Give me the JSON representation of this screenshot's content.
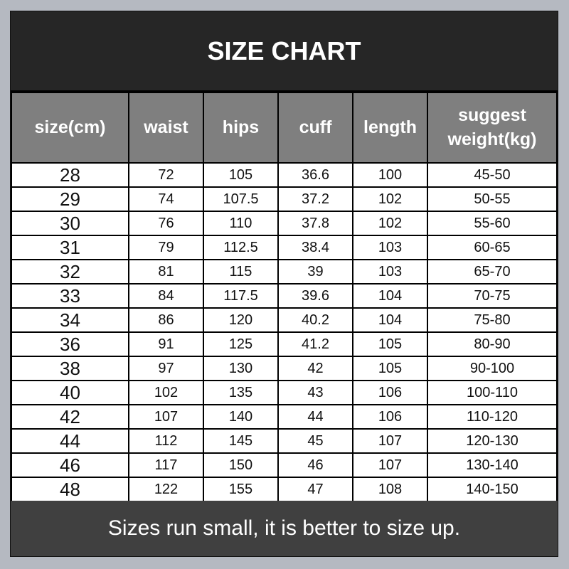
{
  "title": "SIZE CHART",
  "headers": [
    "size(cm)",
    "waist",
    "hips",
    "cuff",
    "length",
    "suggest weight(kg)"
  ],
  "rows": [
    [
      "28",
      "72",
      "105",
      "36.6",
      "100",
      "45-50"
    ],
    [
      "29",
      "74",
      "107.5",
      "37.2",
      "102",
      "50-55"
    ],
    [
      "30",
      "76",
      "110",
      "37.8",
      "102",
      "55-60"
    ],
    [
      "31",
      "79",
      "112.5",
      "38.4",
      "103",
      "60-65"
    ],
    [
      "32",
      "81",
      "115",
      "39",
      "103",
      "65-70"
    ],
    [
      "33",
      "84",
      "117.5",
      "39.6",
      "104",
      "70-75"
    ],
    [
      "34",
      "86",
      "120",
      "40.2",
      "104",
      "75-80"
    ],
    [
      "36",
      "91",
      "125",
      "41.2",
      "105",
      "80-90"
    ],
    [
      "38",
      "97",
      "130",
      "42",
      "105",
      "90-100"
    ],
    [
      "40",
      "102",
      "135",
      "43",
      "106",
      "100-110"
    ],
    [
      "42",
      "107",
      "140",
      "44",
      "106",
      "110-120"
    ],
    [
      "44",
      "112",
      "145",
      "45",
      "107",
      "120-130"
    ],
    [
      "46",
      "117",
      "150",
      "46",
      "107",
      "130-140"
    ],
    [
      "48",
      "122",
      "155",
      "47",
      "108",
      "140-150"
    ]
  ],
  "footer": "Sizes run small, it is better to size up.",
  "colors": {
    "title_bg": "#262626",
    "header_bg": "#7f7f7f",
    "footer_bg": "#404040",
    "page_bg": "#b5b9c1"
  }
}
